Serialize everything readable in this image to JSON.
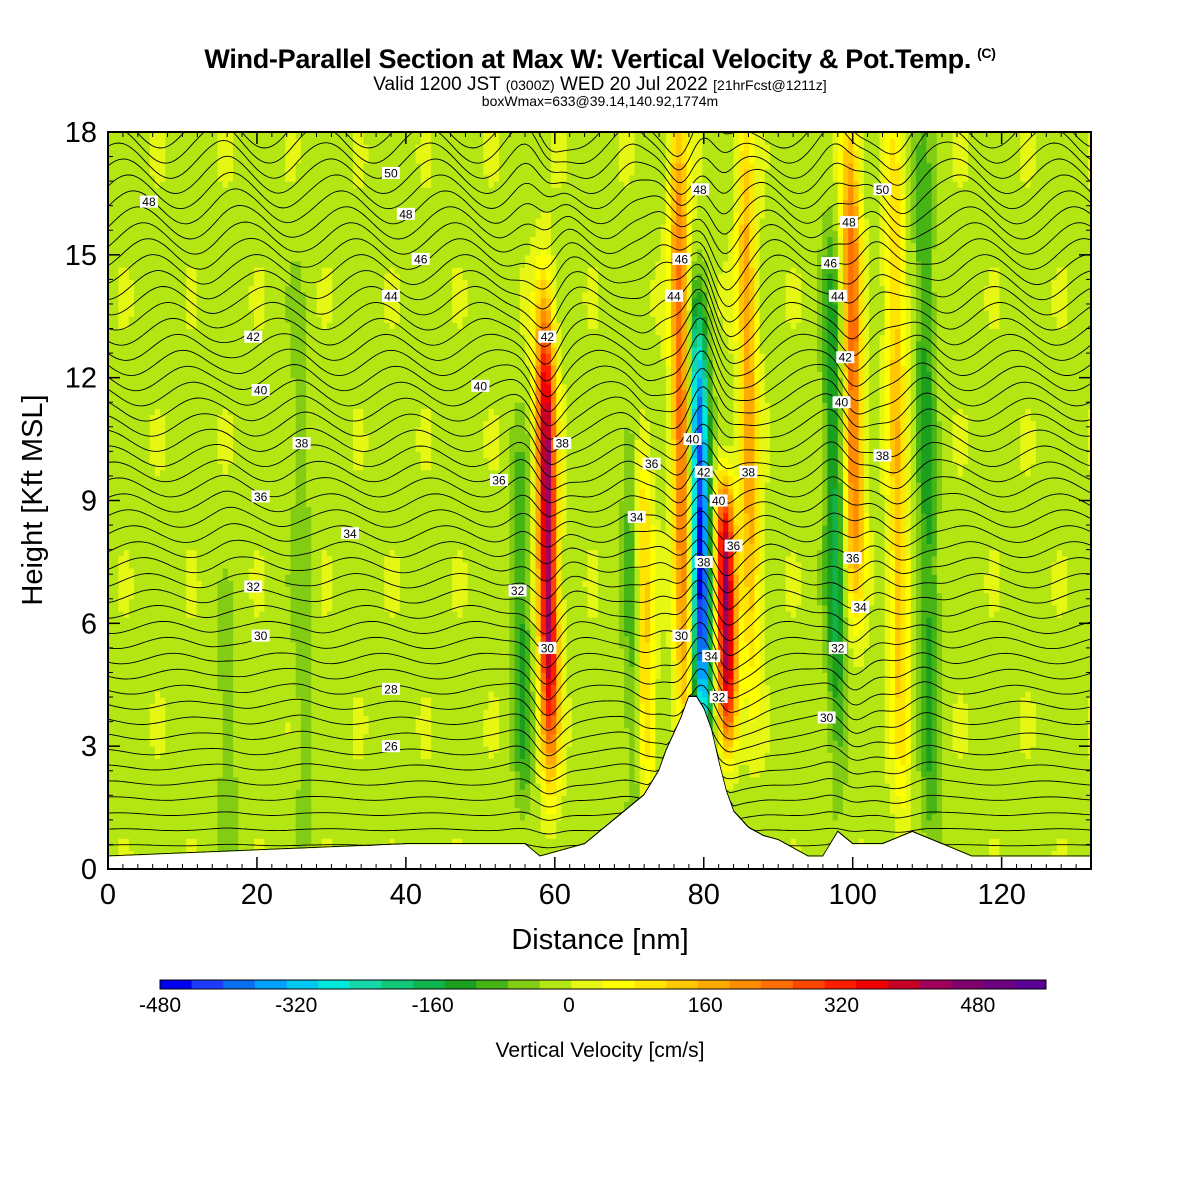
{
  "header": {
    "title": "Wind-Parallel Section at Max W: Vertical Velocity & Pot.Temp.",
    "copyright": "(C)",
    "valid_a": "Valid 1200 JST",
    "valid_b": "(0300Z)",
    "valid_c": "WED 20 Jul 2022",
    "valid_d": "[21hrFcst@1211z]",
    "info": "boxWmax=633@39.14,140.92,1774m"
  },
  "colors": {
    "scale": [
      "#0000f0",
      "#1e3cff",
      "#0a6ef0",
      "#00a0ff",
      "#00c8f0",
      "#00eadc",
      "#14d8a8",
      "#10c878",
      "#10b44c",
      "#1aa01e",
      "#46b414",
      "#82cc14",
      "#b4e614",
      "#e6f714",
      "#ffff00",
      "#ffe600",
      "#ffc800",
      "#ffaa00",
      "#ff8c00",
      "#ff6e00",
      "#ff4600",
      "#ff1e00",
      "#f00000",
      "#c80028",
      "#a0005a",
      "#82006e",
      "#6e0082",
      "#5a0096"
    ],
    "frame": "#000000",
    "terrain": "#ffffff"
  },
  "chart_data": {
    "type": "heatmap",
    "xlabel": "Distance [nm]",
    "ylabel": "Height [Kft MSL]",
    "xlim": [
      0,
      132
    ],
    "ylim": [
      0,
      18
    ],
    "x_ticks": [
      0,
      20,
      40,
      60,
      80,
      100,
      120
    ],
    "y_ticks": [
      0,
      3,
      6,
      9,
      12,
      15,
      18
    ],
    "colorbar": {
      "label": "Vertical Velocity [cm/s]",
      "range": [
        -480,
        560
      ],
      "step": 40,
      "tick_values": [
        -480,
        -320,
        -160,
        0,
        160,
        320,
        480
      ]
    },
    "vertical_velocity_features": [
      {
        "x": 59,
        "z_range": [
          3,
          13.5
        ],
        "peak": 480
      },
      {
        "x": 55.5,
        "z_range": [
          2,
          10
        ],
        "peak": -120
      },
      {
        "x": 70.5,
        "z_range": [
          1.5,
          11
        ],
        "peak": -100
      },
      {
        "x": 72,
        "z_range": [
          2,
          10
        ],
        "peak": 160
      },
      {
        "x": 79.5,
        "z_range": [
          3.5,
          13
        ],
        "peak": -480
      },
      {
        "x": 77,
        "z_range": [
          4,
          18
        ],
        "peak": 280
      },
      {
        "x": 83,
        "z_range": [
          3.5,
          9
        ],
        "peak": 480
      },
      {
        "x": 86,
        "z_range": [
          5,
          18
        ],
        "peak": 200
      },
      {
        "x": 97.5,
        "z_range": [
          3,
          15
        ],
        "peak": -160
      },
      {
        "x": 100,
        "z_range": [
          7,
          18
        ],
        "peak": 280
      },
      {
        "x": 106,
        "z_range": [
          2,
          18
        ],
        "peak": 160
      },
      {
        "x": 110,
        "z_range": [
          0,
          18
        ],
        "peak": -120
      },
      {
        "x": 16,
        "z_range": [
          0,
          6
        ],
        "peak": -60
      },
      {
        "x": 26,
        "z_range": [
          0,
          14
        ],
        "peak": -50
      }
    ],
    "terrain_height_kft": {
      "x": [
        0,
        40,
        56,
        58,
        64,
        66,
        68,
        70,
        72,
        74,
        75,
        76,
        77,
        78,
        79,
        80,
        81,
        82,
        83,
        84,
        86,
        88,
        90,
        92,
        94,
        96,
        97,
        98,
        100,
        104,
        108,
        112,
        116,
        118,
        132
      ],
      "z": [
        0.3,
        0.6,
        0.6,
        0.3,
        0.6,
        0.9,
        1.2,
        1.5,
        1.8,
        2.4,
        2.9,
        3.3,
        3.7,
        4.2,
        4.2,
        3.9,
        3.4,
        2.6,
        1.9,
        1.4,
        1.0,
        0.8,
        0.7,
        0.5,
        0.3,
        0.3,
        0.6,
        0.9,
        0.6,
        0.6,
        0.9,
        0.6,
        0.3,
        0.3,
        0.3
      ]
    },
    "isentrope_labels": [
      {
        "text": "48",
        "x": 5.5,
        "z": 16.3
      },
      {
        "text": "50",
        "x": 38,
        "z": 17
      },
      {
        "text": "48",
        "x": 40,
        "z": 16
      },
      {
        "text": "46",
        "x": 42,
        "z": 14.9
      },
      {
        "text": "44",
        "x": 38,
        "z": 14
      },
      {
        "text": "42",
        "x": 19.5,
        "z": 13
      },
      {
        "text": "40",
        "x": 20.5,
        "z": 11.7
      },
      {
        "text": "38",
        "x": 26,
        "z": 10.4
      },
      {
        "text": "36",
        "x": 20.5,
        "z": 9.1
      },
      {
        "text": "34",
        "x": 32.5,
        "z": 8.2
      },
      {
        "text": "32",
        "x": 19.5,
        "z": 6.9
      },
      {
        "text": "30",
        "x": 20.5,
        "z": 5.7
      },
      {
        "text": "28",
        "x": 38,
        "z": 4.4
      },
      {
        "text": "26",
        "x": 38,
        "z": 3
      },
      {
        "text": "40",
        "x": 50,
        "z": 11.8
      },
      {
        "text": "36",
        "x": 52.5,
        "z": 9.5
      },
      {
        "text": "32",
        "x": 55,
        "z": 6.8
      },
      {
        "text": "30",
        "x": 59,
        "z": 5.4
      },
      {
        "text": "42",
        "x": 59,
        "z": 13
      },
      {
        "text": "38",
        "x": 61,
        "z": 10.4
      },
      {
        "text": "48",
        "x": 79.5,
        "z": 16.6
      },
      {
        "text": "46",
        "x": 77,
        "z": 14.9
      },
      {
        "text": "44",
        "x": 76,
        "z": 14
      },
      {
        "text": "40",
        "x": 78.5,
        "z": 10.5
      },
      {
        "text": "42",
        "x": 80,
        "z": 9.7
      },
      {
        "text": "36",
        "x": 73,
        "z": 9.9
      },
      {
        "text": "34",
        "x": 71,
        "z": 8.6
      },
      {
        "text": "40",
        "x": 82,
        "z": 9
      },
      {
        "text": "38",
        "x": 80,
        "z": 7.5
      },
      {
        "text": "36",
        "x": 84,
        "z": 7.9
      },
      {
        "text": "38",
        "x": 86,
        "z": 9.7
      },
      {
        "text": "30",
        "x": 77,
        "z": 5.7
      },
      {
        "text": "34",
        "x": 81,
        "z": 5.2
      },
      {
        "text": "32",
        "x": 82,
        "z": 4.2
      },
      {
        "text": "50",
        "x": 104,
        "z": 16.6
      },
      {
        "text": "48",
        "x": 99.5,
        "z": 15.8
      },
      {
        "text": "46",
        "x": 97,
        "z": 14.8
      },
      {
        "text": "44",
        "x": 98,
        "z": 14
      },
      {
        "text": "42",
        "x": 99,
        "z": 12.5
      },
      {
        "text": "40",
        "x": 98.5,
        "z": 11.4
      },
      {
        "text": "38",
        "x": 104,
        "z": 10.1
      },
      {
        "text": "36",
        "x": 100,
        "z": 7.6
      },
      {
        "text": "34",
        "x": 101,
        "z": 6.4
      },
      {
        "text": "32",
        "x": 98,
        "z": 5.4
      },
      {
        "text": "30",
        "x": 96.5,
        "z": 3.7
      }
    ]
  }
}
